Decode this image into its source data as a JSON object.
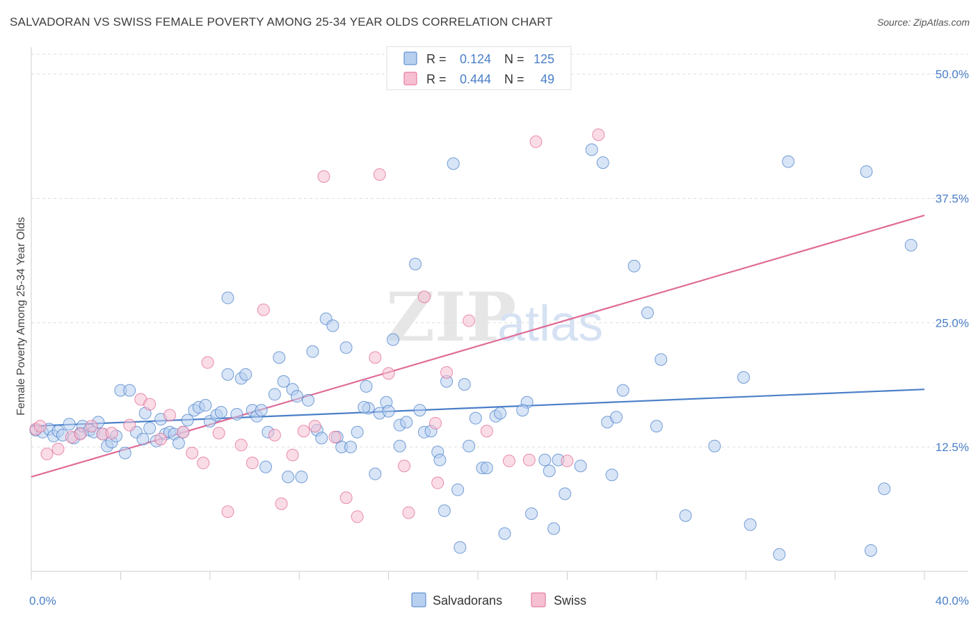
{
  "header": {
    "title": "SALVADORAN VS SWISS FEMALE POVERTY AMONG 25-34 YEAR OLDS CORRELATION CHART",
    "source": "Source: ZipAtlas.com"
  },
  "watermark": {
    "zip": "ZIP",
    "atlas": "atlas"
  },
  "colors": {
    "salvadorans": "#4a7fc8",
    "salvadorans_fill": "#b8d0f0",
    "swiss": "#e06a96",
    "swiss_fill": "#f6c0d2",
    "tick_label": "#4a7fc8",
    "grid": "#dddddd"
  },
  "stats_legend": {
    "r_label": "R =",
    "n_label": "N =",
    "rows": [
      {
        "series": "Salvadorans",
        "r": "0.124",
        "n": "125"
      },
      {
        "series": "Swiss",
        "r": "0.444",
        "n": "49"
      }
    ]
  },
  "chart_data": {
    "type": "scatter",
    "title": "SALVADORAN VS SWISS FEMALE POVERTY AMONG 25-34 YEAR OLDS CORRELATION CHART",
    "xlabel": "",
    "ylabel": "Female Poverty Among 25-34 Year Olds",
    "xlim": [
      0,
      40
    ],
    "ylim": [
      0,
      52
    ],
    "x_tick_labels": [
      "0.0%",
      "40.0%"
    ],
    "y_ticks": [
      12.5,
      25.0,
      37.5,
      50.0
    ],
    "y_tick_labels": [
      "12.5%",
      "25.0%",
      "37.5%",
      "50.0%"
    ],
    "grid": true,
    "legend_position": "bottom-center",
    "series": [
      {
        "name": "Salvadorans",
        "trend": {
          "x": [
            0,
            40
          ],
          "y": [
            14.6,
            18.3
          ]
        },
        "points": [
          [
            0.2,
            14.2
          ],
          [
            0.5,
            14.0
          ],
          [
            0.8,
            14.3
          ],
          [
            1.0,
            13.6
          ],
          [
            1.2,
            14.1
          ],
          [
            1.4,
            13.7
          ],
          [
            1.7,
            14.8
          ],
          [
            1.9,
            13.4
          ],
          [
            2.2,
            13.9
          ],
          [
            2.3,
            14.6
          ],
          [
            2.6,
            14.2
          ],
          [
            2.8,
            14.0
          ],
          [
            3.0,
            15.0
          ],
          [
            3.2,
            13.8
          ],
          [
            3.4,
            12.6
          ],
          [
            3.6,
            13.0
          ],
          [
            3.8,
            13.6
          ],
          [
            4.0,
            18.2
          ],
          [
            4.2,
            11.9
          ],
          [
            4.4,
            18.2
          ],
          [
            4.7,
            14.0
          ],
          [
            5.0,
            13.3
          ],
          [
            5.1,
            15.9
          ],
          [
            5.3,
            14.4
          ],
          [
            5.6,
            13.1
          ],
          [
            5.8,
            15.3
          ],
          [
            6.0,
            13.8
          ],
          [
            6.2,
            14.0
          ],
          [
            6.4,
            13.8
          ],
          [
            6.6,
            12.9
          ],
          [
            6.8,
            14.0
          ],
          [
            7.0,
            15.2
          ],
          [
            7.3,
            16.2
          ],
          [
            7.5,
            16.5
          ],
          [
            7.8,
            16.7
          ],
          [
            8.0,
            15.1
          ],
          [
            8.3,
            15.7
          ],
          [
            8.5,
            16.0
          ],
          [
            8.8,
            27.5
          ],
          [
            8.8,
            19.8
          ],
          [
            9.2,
            15.8
          ],
          [
            9.4,
            19.4
          ],
          [
            9.6,
            19.8
          ],
          [
            9.9,
            16.2
          ],
          [
            10.1,
            15.6
          ],
          [
            10.3,
            16.2
          ],
          [
            10.5,
            10.5
          ],
          [
            10.6,
            14.0
          ],
          [
            10.9,
            17.8
          ],
          [
            11.1,
            21.5
          ],
          [
            11.3,
            19.1
          ],
          [
            11.5,
            9.5
          ],
          [
            11.7,
            18.3
          ],
          [
            11.9,
            17.6
          ],
          [
            12.1,
            9.5
          ],
          [
            12.4,
            17.2
          ],
          [
            12.6,
            22.1
          ],
          [
            12.8,
            14.2
          ],
          [
            13.0,
            13.4
          ],
          [
            13.2,
            25.4
          ],
          [
            13.5,
            24.7
          ],
          [
            13.7,
            13.5
          ],
          [
            13.9,
            12.5
          ],
          [
            14.1,
            22.5
          ],
          [
            14.3,
            12.5
          ],
          [
            14.6,
            14.0
          ],
          [
            15.0,
            18.6
          ],
          [
            15.1,
            16.4
          ],
          [
            15.4,
            9.8
          ],
          [
            15.6,
            15.9
          ],
          [
            15.9,
            17.0
          ],
          [
            16.0,
            16.1
          ],
          [
            16.2,
            23.3
          ],
          [
            16.5,
            12.6
          ],
          [
            16.5,
            14.7
          ],
          [
            16.8,
            15.0
          ],
          [
            17.2,
            30.9
          ],
          [
            17.4,
            16.2
          ],
          [
            17.6,
            14.0
          ],
          [
            17.9,
            14.1
          ],
          [
            18.2,
            12.0
          ],
          [
            18.3,
            11.2
          ],
          [
            18.5,
            6.1
          ],
          [
            18.6,
            19.1
          ],
          [
            18.9,
            41.0
          ],
          [
            19.1,
            8.2
          ],
          [
            19.2,
            2.4
          ],
          [
            19.4,
            18.8
          ],
          [
            19.6,
            12.6
          ],
          [
            19.9,
            15.4
          ],
          [
            20.2,
            10.4
          ],
          [
            20.4,
            10.4
          ],
          [
            20.8,
            15.6
          ],
          [
            21.0,
            15.9
          ],
          [
            21.2,
            3.8
          ],
          [
            22.2,
            17.0
          ],
          [
            22.4,
            5.8
          ],
          [
            23.0,
            11.2
          ],
          [
            23.2,
            10.1
          ],
          [
            23.4,
            4.3
          ],
          [
            23.6,
            11.2
          ],
          [
            23.9,
            7.8
          ],
          [
            25.1,
            42.4
          ],
          [
            25.6,
            41.1
          ],
          [
            25.8,
            15.0
          ],
          [
            26.0,
            9.7
          ],
          [
            26.2,
            15.5
          ],
          [
            26.5,
            18.2
          ],
          [
            27.0,
            30.7
          ],
          [
            27.6,
            26.0
          ],
          [
            28.0,
            14.6
          ],
          [
            28.2,
            21.3
          ],
          [
            29.3,
            5.6
          ],
          [
            30.6,
            12.6
          ],
          [
            31.9,
            19.5
          ],
          [
            32.2,
            4.7
          ],
          [
            33.5,
            1.7
          ],
          [
            33.9,
            41.2
          ],
          [
            37.4,
            40.2
          ],
          [
            37.6,
            2.1
          ],
          [
            38.2,
            8.3
          ],
          [
            39.4,
            32.8
          ],
          [
            22.0,
            16.2
          ],
          [
            24.6,
            10.6
          ],
          [
            14.9,
            16.5
          ]
        ]
      },
      {
        "name": "Swiss",
        "trend": {
          "x": [
            0,
            40
          ],
          "y": [
            9.5,
            35.8
          ]
        },
        "points": [
          [
            0.2,
            14.3
          ],
          [
            0.4,
            14.6
          ],
          [
            0.7,
            11.8
          ],
          [
            1.2,
            12.3
          ],
          [
            1.8,
            13.5
          ],
          [
            2.2,
            13.8
          ],
          [
            2.7,
            14.6
          ],
          [
            3.2,
            13.8
          ],
          [
            3.6,
            13.9
          ],
          [
            4.4,
            14.7
          ],
          [
            4.9,
            17.3
          ],
          [
            5.3,
            16.8
          ],
          [
            5.8,
            13.3
          ],
          [
            6.2,
            15.7
          ],
          [
            6.8,
            14.0
          ],
          [
            7.2,
            11.9
          ],
          [
            7.7,
            10.9
          ],
          [
            7.9,
            21.0
          ],
          [
            8.4,
            13.9
          ],
          [
            8.8,
            6.0
          ],
          [
            9.4,
            12.7
          ],
          [
            9.9,
            10.9
          ],
          [
            10.4,
            26.3
          ],
          [
            10.9,
            13.7
          ],
          [
            11.2,
            6.8
          ],
          [
            11.7,
            11.7
          ],
          [
            12.2,
            14.1
          ],
          [
            12.7,
            14.6
          ],
          [
            13.1,
            39.7
          ],
          [
            13.6,
            13.5
          ],
          [
            14.1,
            7.4
          ],
          [
            14.6,
            5.5
          ],
          [
            15.4,
            21.5
          ],
          [
            15.6,
            39.9
          ],
          [
            16.0,
            19.9
          ],
          [
            16.7,
            10.6
          ],
          [
            16.9,
            5.9
          ],
          [
            17.6,
            27.6
          ],
          [
            18.1,
            14.9
          ],
          [
            18.2,
            8.9
          ],
          [
            18.6,
            20.0
          ],
          [
            19.6,
            25.2
          ],
          [
            20.0,
            50.0
          ],
          [
            20.4,
            14.1
          ],
          [
            21.4,
            11.1
          ],
          [
            22.3,
            11.2
          ],
          [
            22.6,
            43.2
          ],
          [
            24.0,
            11.1
          ],
          [
            25.4,
            43.9
          ]
        ]
      }
    ]
  },
  "bottom_legend": {
    "items": [
      "Salvadorans",
      "Swiss"
    ]
  }
}
